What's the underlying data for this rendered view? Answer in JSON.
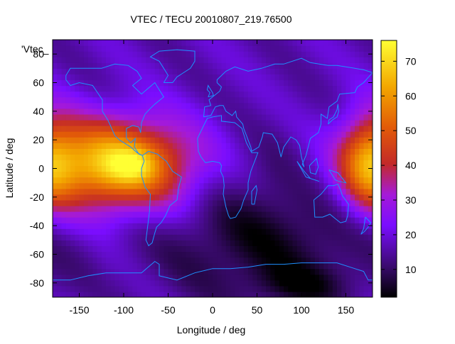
{
  "chart_data": {
    "type": "heatmap",
    "title": "VTEC / TECU 20010807_219.76500",
    "xlabel": "Longitude / deg",
    "ylabel": "Latitude / deg",
    "key_label": "'Vtec_",
    "xlim": [
      -180,
      180
    ],
    "ylim": [
      -90,
      90
    ],
    "x_ticks": [
      "-150",
      "-100",
      "-50",
      "0",
      "50",
      "100",
      "150"
    ],
    "y_ticks": [
      "-80",
      "-60",
      "-40",
      "-20",
      "0",
      "20",
      "40",
      "60",
      "80"
    ],
    "colorbar": {
      "range": [
        2,
        76
      ],
      "ticks": [
        "10",
        "20",
        "30",
        "40",
        "50",
        "60",
        "70"
      ],
      "palette": "black-purple-red-orange-yellow"
    },
    "grid": false,
    "overlay": "coastlines",
    "features": [
      {
        "description": "equatorial anomaly maximum",
        "lon": -95,
        "lat": 3,
        "value": 75
      },
      {
        "description": "night-side minimum",
        "lon": 100,
        "lat": -80,
        "value": 3
      }
    ]
  }
}
